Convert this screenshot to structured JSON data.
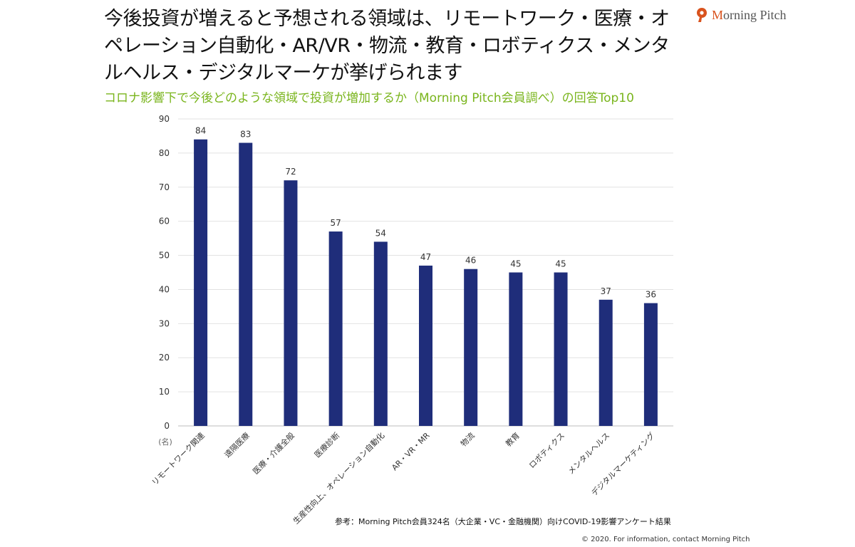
{
  "title": "今後投資が増えると予想される領域は、リモートワーク・医療・オペレーション自動化・AR/VR・物流・教育・ロボティクス・メンタルヘルス・デジタルマーケが挙げられます",
  "logo": {
    "text_prefix": "M",
    "text_rest": "orning Pitch",
    "brand_color": "#d9531e"
  },
  "chart_data": {
    "type": "bar",
    "title": "コロナ影響下で今後どのような領域で投資が増加するか（Morning Pitch会員調べ）の回答Top10",
    "unit_label": "(名)",
    "categories": [
      "リモートワーク関連",
      "遠隔医療",
      "医療・介護全般",
      "医療診断",
      "生産性向上、オペレーション自動化",
      "AR・VR・MR",
      "物流",
      "教育",
      "ロボティクス",
      "メンタルヘルス",
      "デジタルマーケティング"
    ],
    "values": [
      84,
      83,
      72,
      57,
      54,
      47,
      46,
      45,
      45,
      37,
      36
    ],
    "ylim": [
      0,
      90
    ],
    "yticks": [
      0,
      10,
      20,
      30,
      40,
      50,
      60,
      70,
      80,
      90
    ],
    "bar_color": "#1f2d7a",
    "grid": true
  },
  "note": "参考：Morning Pitch会員324名（大企業・VC・金融機関）向けCOVID-19影響アンケート結果",
  "copyright": "© 2020. For information,  contact Morning  Pitch"
}
